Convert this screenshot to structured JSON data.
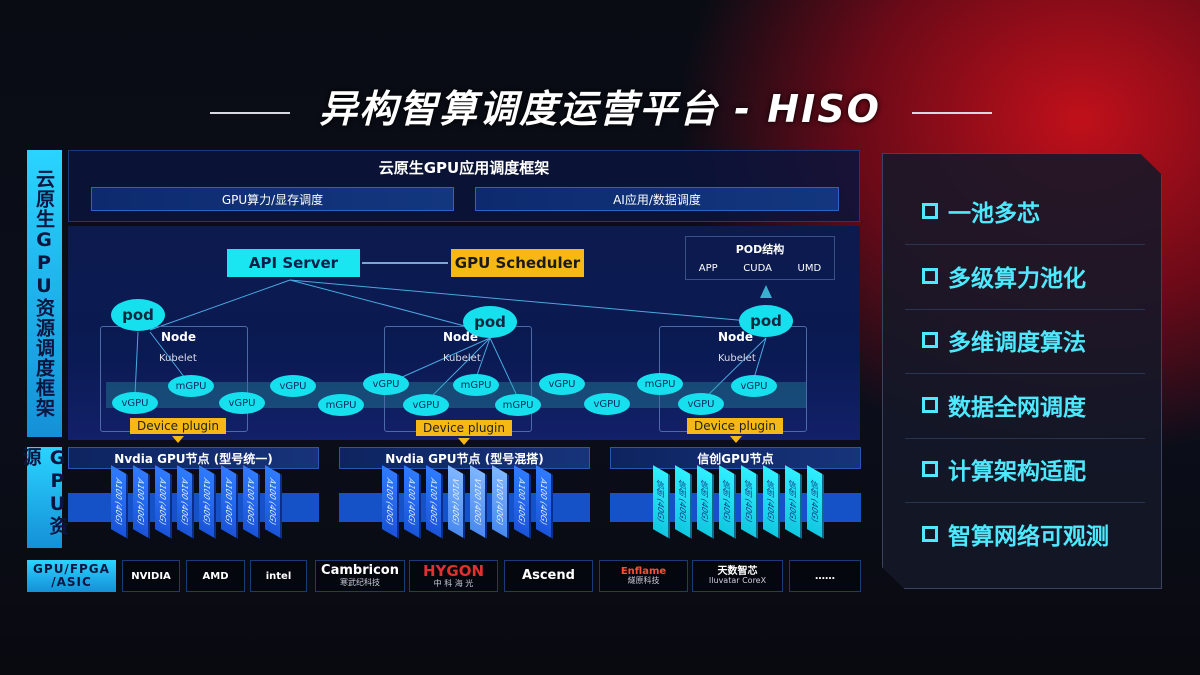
{
  "title": "异构智算调度运营平台 - HISO",
  "left_labels": {
    "framework": "云原生GPU资源调度框架",
    "gpu": "GPU资源"
  },
  "app_framework": {
    "title": "云原生GPU应用调度框架",
    "boxes": [
      "GPU算力/显存调度",
      "AI应用/数据调度"
    ]
  },
  "diagram": {
    "api_server": "API Server",
    "gpu_scheduler": "GPU Scheduler",
    "pod_structure": {
      "title": "POD结构",
      "items": [
        "APP",
        "CUDA",
        "UMD"
      ]
    },
    "pod_label": "pod",
    "node_label": "Node",
    "kubelet_label": "Kubelet",
    "device_plugin": "Device plugin",
    "gpus": [
      "vGPU",
      "mGPU",
      "vGPU",
      "vGPU",
      "mGPU",
      "vGPU",
      "vGPU",
      "mGPU",
      "mGPU",
      "vGPU",
      "vGPU",
      "mGPU",
      "vGPU",
      "vGPU"
    ]
  },
  "gpu_nodes": [
    {
      "title": "Nvdia GPU节点 (型号统一)",
      "chips": [
        "A100 (40G)",
        "A100 (40G)",
        "A100 (40G)",
        "A100 (40G)",
        "A100 (40G)",
        "A100 (40G)",
        "A100 (40G)",
        "A100 (40G)"
      ],
      "style": [
        "n",
        "n",
        "n",
        "n",
        "n",
        "n",
        "n",
        "n"
      ]
    },
    {
      "title": "Nvdia GPU节点 (型号混搭)",
      "chips": [
        "A100 (40G)",
        "A100 (40G)",
        "A100 (40G)",
        "V100 (40G)",
        "V100 (40G)",
        "V100 (40G)",
        "A100 (40G)",
        "A100 (40G)"
      ],
      "style": [
        "n",
        "n",
        "n",
        "l",
        "l",
        "l",
        "n",
        "n"
      ]
    },
    {
      "title": "信创GPU节点",
      "chips": [
        "信创 (40G)",
        "信创 (40G)",
        "信创 (40G)",
        "信创 (40G)",
        "信创 (40G)",
        "信创 (40G)",
        "信创 (40G)",
        "信创 (40G)"
      ],
      "style": [
        "c",
        "c",
        "c",
        "c",
        "c",
        "c",
        "c",
        "c"
      ]
    }
  ],
  "vendors": {
    "label": "GPU/FPGA /ASIC",
    "items": [
      {
        "name": "NVIDIA",
        "sub": ""
      },
      {
        "name": "AMD",
        "sub": ""
      },
      {
        "name": "intel",
        "sub": ""
      },
      {
        "name": "Cambricon",
        "sub": "寒武纪科技"
      },
      {
        "name": "HYGON",
        "sub": "中 科 海 光"
      },
      {
        "name": "Ascend",
        "sub": ""
      },
      {
        "name": "Enflame",
        "sub": "燧原科技"
      },
      {
        "name": "天数智芯",
        "sub": "Iluvatar CoreX"
      },
      {
        "name": "……",
        "sub": ""
      }
    ]
  },
  "features": [
    "一池多芯",
    "多级算力池化",
    "多维调度算法",
    "数据全网调度",
    "计算架构适配",
    "智算网络可观测"
  ],
  "colors": {
    "cyan": "#19e6f0",
    "yellow": "#f6b815",
    "blue": "#1552c8",
    "red": "#c0101a"
  }
}
